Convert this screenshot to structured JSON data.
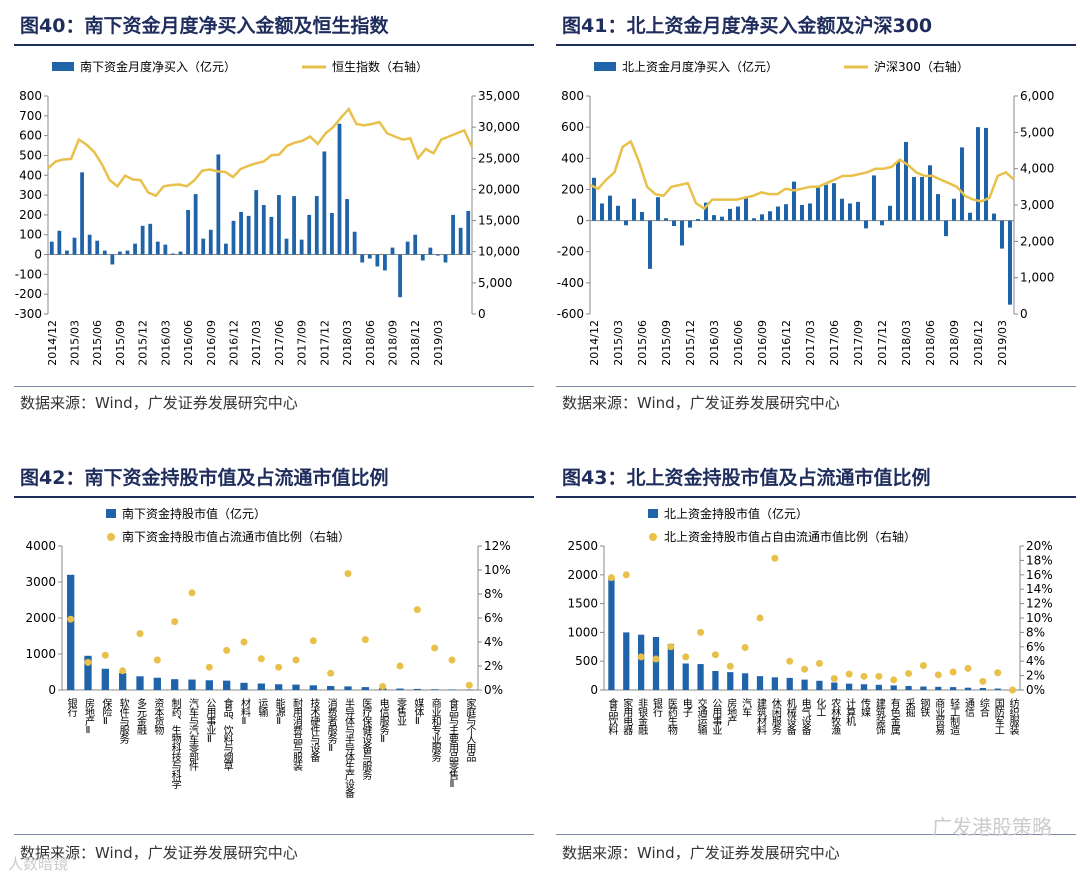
{
  "source_label": "数据来源：Wind，广发证券发展研究中心",
  "watermark": "广发港股策略",
  "watermark_left": "人数暗镜",
  "colors": {
    "bar": "#1f63a8",
    "line": "#e8c04a",
    "title": "#1f2d5c"
  },
  "chart_data": [
    {
      "id": "fig40",
      "type": "bar",
      "fig_label": "图40：",
      "title": "南下资金月度净买入金额及恒生指数",
      "legend": [
        "南下资金月度净买入（亿元）",
        "恒生指数（右轴）"
      ],
      "ylim": [
        -300,
        800
      ],
      "yticks": [
        "800",
        "700",
        "600",
        "500",
        "400",
        "300",
        "200",
        "100",
        "0",
        "-100",
        "-200",
        "-300"
      ],
      "y2lim": [
        0,
        35000
      ],
      "y2ticks": [
        "35,000",
        "30,000",
        "25,000",
        "20,000",
        "15,000",
        "10,000",
        "5,000",
        "0"
      ],
      "xtick_labels": [
        "2014/12",
        "2015/03",
        "2015/06",
        "2015/09",
        "2015/12",
        "2016/03",
        "2016/06",
        "2016/09",
        "2016/12",
        "2017/03",
        "2017/06",
        "2017/09",
        "2017/12",
        "2018/03",
        "2018/06",
        "2018/09",
        "2018/12",
        "2019/03"
      ],
      "bars": [
        65,
        120,
        20,
        85,
        415,
        100,
        70,
        20,
        -50,
        15,
        20,
        55,
        145,
        155,
        65,
        50,
        5,
        15,
        225,
        305,
        80,
        125,
        505,
        55,
        170,
        215,
        195,
        325,
        250,
        190,
        300,
        80,
        295,
        75,
        200,
        295,
        520,
        210,
        660,
        280,
        115,
        -40,
        -20,
        -60,
        -80,
        35,
        -215,
        65,
        100,
        -30,
        35,
        -5,
        -40,
        200,
        135,
        220
      ],
      "line": [
        23400,
        24500,
        24800,
        24900,
        28000,
        27200,
        26000,
        24000,
        21500,
        20500,
        22200,
        21600,
        21500,
        19500,
        19000,
        20500,
        20700,
        20800,
        20500,
        21500,
        23000,
        23200,
        22900,
        22800,
        22000,
        23300,
        23800,
        24200,
        24500,
        25500,
        25600,
        27000,
        27500,
        27800,
        28500,
        27300,
        29000,
        30000,
        31500,
        32900,
        30500,
        30300,
        30500,
        30800,
        29000,
        28500,
        28000,
        28200,
        25000,
        26500,
        25800,
        28000,
        28500,
        29000,
        29500,
        26800
      ]
    },
    {
      "id": "fig41",
      "type": "bar",
      "fig_label": "图41：",
      "title": "北上资金月度净买入金额及沪深300",
      "legend": [
        "北上资金月度净买入（亿元）",
        "沪深300（右轴）"
      ],
      "ylim": [
        -600,
        800
      ],
      "yticks": [
        "800",
        "600",
        "400",
        "200",
        "0",
        "-200",
        "-400",
        "-600"
      ],
      "y2lim": [
        0,
        6000
      ],
      "y2ticks": [
        "6,000",
        "5,000",
        "4,000",
        "3,000",
        "2,000",
        "1,000",
        "0"
      ],
      "xtick_labels": [
        "2014/12",
        "2015/03",
        "2015/06",
        "2015/09",
        "2015/12",
        "2016/03",
        "2016/06",
        "2016/09",
        "2016/12",
        "2017/03",
        "2017/06",
        "2017/09",
        "2017/12",
        "2018/03",
        "2018/06",
        "2018/09",
        "2018/12",
        "2019/03"
      ],
      "bars": [
        275,
        110,
        160,
        95,
        -30,
        140,
        55,
        -310,
        150,
        15,
        -35,
        -160,
        -45,
        10,
        115,
        35,
        25,
        75,
        90,
        155,
        15,
        40,
        60,
        90,
        105,
        250,
        100,
        110,
        225,
        230,
        240,
        140,
        110,
        120,
        -50,
        290,
        -30,
        95,
        380,
        505,
        280,
        280,
        355,
        170,
        -100,
        140,
        470,
        50,
        600,
        595,
        45,
        -180,
        -540
      ],
      "line": [
        3550,
        3450,
        3700,
        3900,
        4600,
        4750,
        4200,
        3500,
        3300,
        3250,
        3500,
        3550,
        3600,
        3050,
        2900,
        3150,
        3150,
        3150,
        3150,
        3200,
        3250,
        3350,
        3300,
        3300,
        3450,
        3400,
        3450,
        3500,
        3500,
        3600,
        3700,
        3800,
        3800,
        3850,
        3900,
        4000,
        4000,
        4050,
        4250,
        4100,
        3900,
        3800,
        3800,
        3700,
        3600,
        3500,
        3250,
        3150,
        3100,
        3200,
        3800,
        3900,
        3700
      ]
    },
    {
      "id": "fig42",
      "type": "bar",
      "fig_label": "图42：",
      "title": "南下资金持股市值及占流通市值比例",
      "legend": [
        "南下资金持股市值（亿元）",
        "南下资金持股市值占流通市值比例（右轴）"
      ],
      "ylim": [
        0,
        4000
      ],
      "yticks": [
        "4000",
        "3000",
        "2000",
        "1000",
        "0"
      ],
      "y2lim": [
        0,
        12
      ],
      "y2ticks": [
        "12%",
        "10%",
        "8%",
        "6%",
        "4%",
        "2%",
        "0%"
      ],
      "categories": [
        "银行",
        "房地产Ⅱ",
        "保险Ⅱ",
        "软件与服务",
        "多元金融",
        "资本货物",
        "制药、生物科技与科学",
        "汽车与汽车零部件",
        "公用事业Ⅱ",
        "食品、饮料与烟草",
        "材料Ⅱ",
        "运输",
        "能源Ⅱ",
        "耐用消费品与服装",
        "技术硬件与设备",
        "消费者服务Ⅱ",
        "半导体与半导体生产设备",
        "医疗保健设备与服务",
        "电信服务Ⅱ",
        "零售业",
        "媒体Ⅱ",
        "商业和专业服务",
        "食品与主要用品零售Ⅱ",
        "家庭与个人用品"
      ],
      "values": [
        3200,
        950,
        590,
        470,
        380,
        340,
        300,
        290,
        270,
        260,
        200,
        180,
        160,
        150,
        130,
        110,
        100,
        80,
        50,
        40,
        30,
        20,
        15,
        10
      ],
      "ratio": [
        5.9,
        2.3,
        2.9,
        1.6,
        4.7,
        2.5,
        5.7,
        8.1,
        1.9,
        3.3,
        4.0,
        2.6,
        1.9,
        2.5,
        4.1,
        1.4,
        9.7,
        4.2,
        0.3,
        2.0,
        6.7,
        3.5,
        2.5,
        0.4
      ]
    },
    {
      "id": "fig43",
      "type": "bar",
      "fig_label": "图43：",
      "title": "北上资金持股市值及占流通市值比例",
      "legend": [
        "北上资金持股市值（亿元）",
        "北上资金持股市值占自由流通市值比例（右轴）"
      ],
      "ylim": [
        0,
        2500
      ],
      "yticks": [
        "2500",
        "2000",
        "1500",
        "1000",
        "500",
        "0"
      ],
      "y2lim": [
        0,
        20
      ],
      "y2ticks": [
        "20%",
        "18%",
        "16%",
        "14%",
        "12%",
        "10%",
        "8%",
        "6%",
        "4%",
        "2%",
        "0%"
      ],
      "categories": [
        "食品饮料",
        "家用电器",
        "非银金融",
        "银行",
        "医药生物",
        "电子",
        "交通运输",
        "公用事业",
        "房地产",
        "汽车",
        "建筑材料",
        "休闲服务",
        "机械设备",
        "电气设备",
        "化工",
        "农林牧渔",
        "计算机",
        "传媒",
        "建筑装饰",
        "有色金属",
        "采掘",
        "钢铁",
        "商业贸易",
        "轻工制造",
        "通信",
        "综合",
        "国防军工",
        "纺织服装"
      ],
      "values": [
        1950,
        1000,
        960,
        920,
        800,
        460,
        450,
        330,
        310,
        290,
        240,
        220,
        210,
        180,
        160,
        130,
        110,
        100,
        90,
        80,
        70,
        60,
        55,
        50,
        40,
        35,
        25,
        15
      ],
      "ratio": [
        15.6,
        16.0,
        4.6,
        4.3,
        6.0,
        4.6,
        8.0,
        4.9,
        3.3,
        5.9,
        10.0,
        18.3,
        4.0,
        2.9,
        3.7,
        1.6,
        2.2,
        1.9,
        1.9,
        1.4,
        2.3,
        3.4,
        2.1,
        2.5,
        3.0,
        1.2,
        2.4,
        0
      ]
    }
  ]
}
